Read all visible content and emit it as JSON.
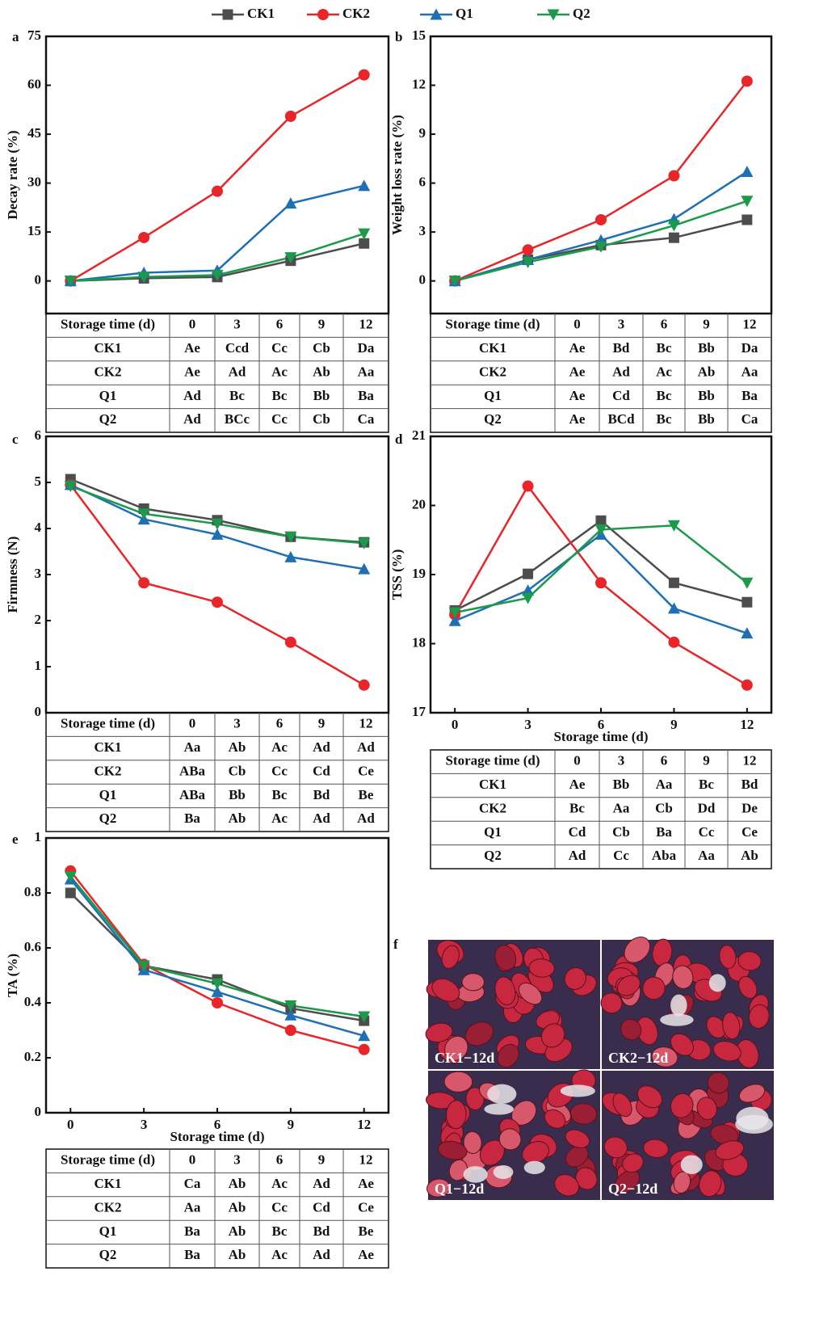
{
  "chart_data": [
    {
      "type": "line",
      "panel": "a",
      "ylabel": "Decay rate (%)",
      "x": [
        0,
        3,
        6,
        9,
        12
      ],
      "xlim": [
        -1,
        13
      ],
      "ylim": [
        -10,
        75
      ],
      "yticks": [
        0,
        15,
        30,
        45,
        60,
        75
      ],
      "series": [
        {
          "name": "CK1",
          "color": "#4d4d4d",
          "marker": "square",
          "values": [
            0,
            0.8,
            1.2,
            6.2,
            11.5
          ]
        },
        {
          "name": "CK2",
          "color": "#e8262a",
          "marker": "circle",
          "values": [
            0,
            13.3,
            27.5,
            50.5,
            63.2
          ]
        },
        {
          "name": "Q1",
          "color": "#1f6fb5",
          "marker": "triangle-up",
          "values": [
            0,
            2.5,
            3.2,
            23.8,
            29.2
          ]
        },
        {
          "name": "Q2",
          "color": "#1a9a4a",
          "marker": "triangle-down",
          "values": [
            0,
            1.2,
            1.8,
            7.2,
            14.5
          ]
        }
      ]
    },
    {
      "type": "line",
      "panel": "b",
      "ylabel": "Weight loss rate (%)",
      "x": [
        0,
        3,
        6,
        9,
        12
      ],
      "xlim": [
        -1,
        13
      ],
      "ylim": [
        -2,
        15
      ],
      "yticks": [
        0,
        3,
        6,
        9,
        12,
        15
      ],
      "series": [
        {
          "name": "CK1",
          "color": "#4d4d4d",
          "marker": "square",
          "values": [
            0,
            1.3,
            2.2,
            2.65,
            3.75
          ]
        },
        {
          "name": "CK2",
          "color": "#e8262a",
          "marker": "circle",
          "values": [
            0,
            1.9,
            3.75,
            6.45,
            12.25
          ]
        },
        {
          "name": "Q1",
          "color": "#1f6fb5",
          "marker": "triangle-up",
          "values": [
            0,
            1.3,
            2.5,
            3.8,
            6.7
          ]
        },
        {
          "name": "Q2",
          "color": "#1a9a4a",
          "marker": "triangle-down",
          "values": [
            0,
            1.15,
            2.1,
            3.4,
            4.9
          ]
        }
      ]
    },
    {
      "type": "line",
      "panel": "c",
      "ylabel": "Firmness (N)",
      "x": [
        0,
        3,
        6,
        9,
        12
      ],
      "xlim": [
        -1,
        13
      ],
      "ylim": [
        0,
        6
      ],
      "yticks": [
        0,
        1,
        2,
        3,
        4,
        5,
        6
      ],
      "series": [
        {
          "name": "CK1",
          "color": "#4d4d4d",
          "marker": "square",
          "values": [
            5.07,
            4.43,
            4.18,
            3.82,
            3.7
          ]
        },
        {
          "name": "CK2",
          "color": "#e8262a",
          "marker": "circle",
          "values": [
            4.95,
            2.82,
            2.4,
            1.53,
            0.6
          ]
        },
        {
          "name": "Q1",
          "color": "#1f6fb5",
          "marker": "triangle-up",
          "values": [
            4.95,
            4.2,
            3.87,
            3.38,
            3.12
          ]
        },
        {
          "name": "Q2",
          "color": "#1a9a4a",
          "marker": "triangle-down",
          "values": [
            4.92,
            4.32,
            4.1,
            3.82,
            3.68
          ]
        }
      ]
    },
    {
      "type": "line",
      "panel": "d",
      "ylabel": "TSS (%)",
      "xlabel": "Storage time (d)",
      "x": [
        0,
        3,
        6,
        9,
        12
      ],
      "xlim": [
        -1,
        13
      ],
      "xticks": [
        0,
        3,
        6,
        9,
        12
      ],
      "ylim": [
        17,
        21
      ],
      "yticks": [
        17,
        18,
        19,
        20,
        21
      ],
      "series": [
        {
          "name": "CK1",
          "color": "#4d4d4d",
          "marker": "square",
          "values": [
            18.48,
            19.01,
            19.78,
            18.88,
            18.6
          ]
        },
        {
          "name": "CK2",
          "color": "#e8262a",
          "marker": "circle",
          "values": [
            18.42,
            20.28,
            18.88,
            18.02,
            17.4
          ]
        },
        {
          "name": "Q1",
          "color": "#1f6fb5",
          "marker": "triangle-up",
          "values": [
            18.33,
            18.77,
            19.58,
            18.51,
            18.15
          ]
        },
        {
          "name": "Q2",
          "color": "#1a9a4a",
          "marker": "triangle-down",
          "values": [
            18.45,
            18.66,
            19.65,
            19.71,
            18.88
          ]
        }
      ]
    },
    {
      "type": "line",
      "panel": "e",
      "ylabel": "TA (%)",
      "xlabel": "Storage time (d)",
      "x": [
        0,
        3,
        6,
        9,
        12
      ],
      "xlim": [
        -1,
        13
      ],
      "xticks": [
        0,
        3,
        6,
        9,
        12
      ],
      "ylim": [
        0,
        1
      ],
      "yticks": [
        0,
        0.2,
        0.4,
        0.6,
        0.8,
        1
      ],
      "series": [
        {
          "name": "CK1",
          "color": "#4d4d4d",
          "marker": "square",
          "values": [
            0.8,
            0.535,
            0.485,
            0.38,
            0.335
          ]
        },
        {
          "name": "CK2",
          "color": "#e8262a",
          "marker": "circle",
          "values": [
            0.88,
            0.54,
            0.4,
            0.3,
            0.23
          ]
        },
        {
          "name": "Q1",
          "color": "#1f6fb5",
          "marker": "triangle-up",
          "values": [
            0.85,
            0.52,
            0.44,
            0.355,
            0.28
          ]
        },
        {
          "name": "Q2",
          "color": "#1a9a4a",
          "marker": "triangle-down",
          "values": [
            0.86,
            0.535,
            0.47,
            0.39,
            0.35
          ]
        }
      ]
    }
  ],
  "tables": [
    {
      "header": [
        "Storage time (d)",
        "0",
        "3",
        "6",
        "9",
        "12"
      ],
      "rows": [
        [
          "CK1",
          "Ae",
          "Ccd",
          "Cc",
          "Cb",
          "Da"
        ],
        [
          "CK2",
          "Ae",
          "Ad",
          "Ac",
          "Ab",
          "Aa"
        ],
        [
          "Q1",
          "Ad",
          "Bc",
          "Bc",
          "Bb",
          "Ba"
        ],
        [
          "Q2",
          "Ad",
          "BCc",
          "Cc",
          "Cb",
          "Ca"
        ]
      ]
    },
    {
      "header": [
        "Storage time (d)",
        "0",
        "3",
        "6",
        "9",
        "12"
      ],
      "rows": [
        [
          "CK1",
          "Ae",
          "Bd",
          "Bc",
          "Bb",
          "Da"
        ],
        [
          "CK2",
          "Ae",
          "Ad",
          "Ac",
          "Ab",
          "Aa"
        ],
        [
          "Q1",
          "Ae",
          "Cd",
          "Bc",
          "Bb",
          "Ba"
        ],
        [
          "Q2",
          "Ae",
          "BCd",
          "Bc",
          "Bb",
          "Ca"
        ]
      ]
    },
    {
      "header": [
        "Storage time (d)",
        "0",
        "3",
        "6",
        "9",
        "12"
      ],
      "rows": [
        [
          "CK1",
          "Aa",
          "Ab",
          "Ac",
          "Ad",
          "Ad"
        ],
        [
          "CK2",
          "ABa",
          "Cb",
          "Cc",
          "Cd",
          "Ce"
        ],
        [
          "Q1",
          "ABa",
          "Bb",
          "Bc",
          "Bd",
          "Be"
        ],
        [
          "Q2",
          "Ba",
          "Ab",
          "Ac",
          "Ad",
          "Ad"
        ]
      ]
    },
    {
      "header": [
        "Storage time (d)",
        "0",
        "3",
        "6",
        "9",
        "12"
      ],
      "rows": [
        [
          "CK1",
          "Ae",
          "Bb",
          "Aa",
          "Bc",
          "Bd"
        ],
        [
          "CK2",
          "Bc",
          "Aa",
          "Cb",
          "Dd",
          "De"
        ],
        [
          "Q1",
          "Cd",
          "Cb",
          "Ba",
          "Cc",
          "Ce"
        ],
        [
          "Q2",
          "Ad",
          "Cc",
          "Aba",
          "Aa",
          "Ab"
        ]
      ]
    },
    {
      "header": [
        "Storage time (d)",
        "0",
        "3",
        "6",
        "9",
        "12"
      ],
      "rows": [
        [
          "CK1",
          "Ca",
          "Ab",
          "Ac",
          "Ad",
          "Ae"
        ],
        [
          "CK2",
          "Aa",
          "Ab",
          "Cc",
          "Cd",
          "Ce"
        ],
        [
          "Q1",
          "Ba",
          "Ab",
          "Bc",
          "Bd",
          "Be"
        ],
        [
          "Q2",
          "Ba",
          "Ab",
          "Ac",
          "Ad",
          "Ae"
        ]
      ]
    }
  ],
  "photo": {
    "panel": "f",
    "labels": [
      "CK1−12d",
      "CK2−12d",
      "Q1−12d",
      "Q2−12d"
    ]
  }
}
